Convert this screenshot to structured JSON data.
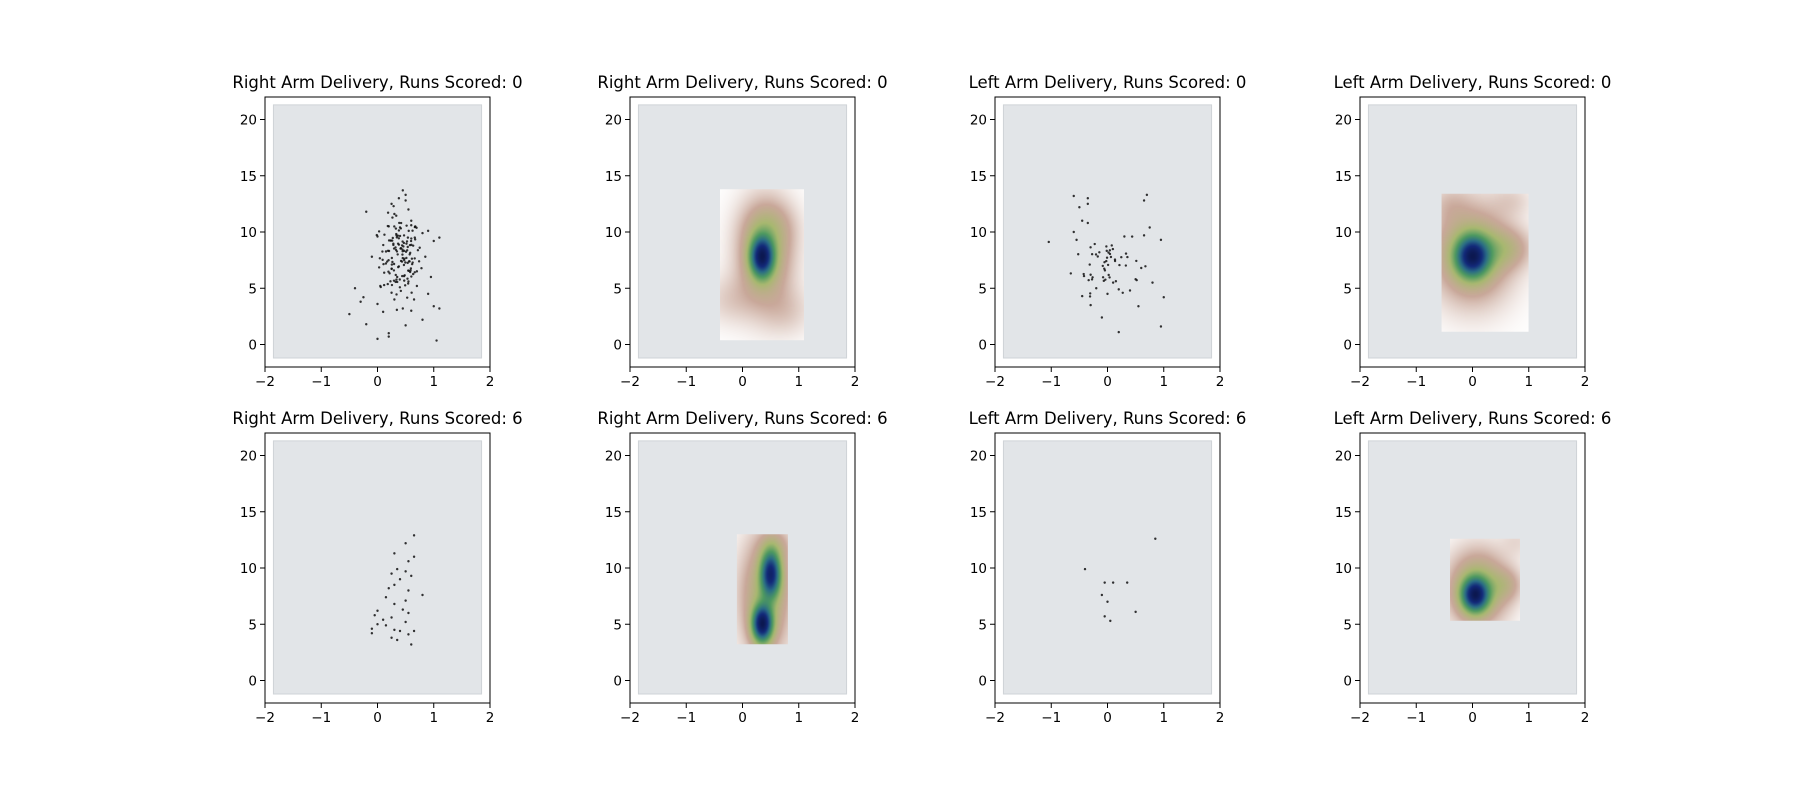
{
  "palette": {
    "pitch_fill": "#e2e5e8",
    "pitch_edge": "#cfd3d7",
    "point_color": "#111111",
    "density_colormap": [
      "#ffffff",
      "#c9a89a",
      "#a8b870",
      "#4f9a60",
      "#2a6c86",
      "#132a7a",
      "#0c1850"
    ]
  },
  "chart_data": [
    {
      "type": "scatter",
      "title": "Right Arm Delivery, Runs Scored: 0",
      "xlim": [
        -2,
        2
      ],
      "ylim": [
        -2,
        22
      ],
      "xticks": [
        "−2",
        "−1",
        "0",
        "1",
        "2"
      ],
      "yticks": [
        "0",
        "5",
        "10",
        "15",
        "20"
      ],
      "pitch": {
        "x": [
          -1.85,
          1.85
        ],
        "y": [
          -1.2,
          21.3
        ]
      },
      "cluster": {
        "cx": 0.4,
        "cy": 7.8,
        "sx": 0.18,
        "sy": 1.8,
        "n": 140
      },
      "points": [
        [
          -0.2,
          11.8
        ],
        [
          -0.4,
          5.0
        ],
        [
          -0.5,
          2.7
        ],
        [
          -0.3,
          3.8
        ],
        [
          -0.25,
          4.2
        ],
        [
          -0.2,
          1.8
        ],
        [
          0.0,
          0.5
        ],
        [
          0.2,
          1.0
        ],
        [
          0.2,
          0.7
        ],
        [
          0.1,
          2.9
        ],
        [
          0.05,
          5.2
        ],
        [
          0.0,
          3.6
        ],
        [
          0.3,
          4.0
        ],
        [
          0.5,
          1.7
        ],
        [
          0.6,
          3.0
        ],
        [
          0.8,
          2.2
        ],
        [
          1.0,
          3.4
        ],
        [
          1.1,
          3.2
        ],
        [
          1.05,
          0.35
        ],
        [
          0.9,
          4.5
        ],
        [
          0.95,
          6.0
        ],
        [
          0.85,
          7.8
        ],
        [
          1.0,
          9.2
        ],
        [
          1.1,
          9.5
        ],
        [
          0.9,
          10.1
        ],
        [
          0.75,
          8.6
        ],
        [
          0.7,
          5.2
        ],
        [
          0.45,
          13.7
        ],
        [
          0.38,
          13.0
        ],
        [
          0.5,
          12.8
        ],
        [
          0.55,
          12.0
        ],
        [
          0.3,
          11.6
        ],
        [
          0.6,
          11.0
        ],
        [
          0.2,
          10.5
        ],
        [
          0.15,
          7.2
        ],
        [
          0.35,
          6.0
        ],
        [
          0.55,
          5.6
        ],
        [
          0.25,
          4.6
        ],
        [
          0.45,
          3.2
        ],
        [
          0.65,
          4.0
        ],
        [
          0.4,
          10.4
        ],
        [
          0.6,
          10.6
        ],
        [
          0.25,
          12.5
        ],
        [
          0.5,
          13.3
        ],
        [
          0.8,
          9.9
        ],
        [
          -0.1,
          7.8
        ],
        [
          0.0,
          9.6
        ],
        [
          0.7,
          6.5
        ]
      ]
    },
    {
      "type": "heatmap",
      "title": "Right Arm Delivery, Runs Scored: 0",
      "xlim": [
        -2,
        2
      ],
      "ylim": [
        -2,
        22
      ],
      "xticks": [
        "−2",
        "−1",
        "0",
        "1",
        "2"
      ],
      "yticks": [
        "0",
        "5",
        "10",
        "15",
        "20"
      ],
      "pitch": {
        "x": [
          -1.85,
          1.85
        ],
        "y": [
          -1.2,
          21.3
        ]
      },
      "extent": {
        "x": [
          -0.4,
          1.1
        ],
        "y": [
          0.4,
          13.8
        ]
      },
      "kernels": [
        {
          "cx": 0.35,
          "cy": 7.8,
          "sx": 0.14,
          "sy": 1.2,
          "w": 1.0
        },
        {
          "cx": 0.4,
          "cy": 8.0,
          "sx": 0.32,
          "sy": 3.0,
          "w": 0.35
        },
        {
          "cx": 0.5,
          "cy": 10.5,
          "sx": 0.3,
          "sy": 1.5,
          "w": 0.12
        },
        {
          "cx": -0.2,
          "cy": 4.0,
          "sx": 0.35,
          "sy": 1.5,
          "w": 0.08
        },
        {
          "cx": 0.8,
          "cy": 3.0,
          "sx": 0.3,
          "sy": 1.5,
          "w": 0.08
        }
      ]
    },
    {
      "type": "scatter",
      "title": "Left Arm Delivery, Runs Scored: 0",
      "xlim": [
        -2,
        2
      ],
      "ylim": [
        -2,
        22
      ],
      "xticks": [
        "−2",
        "−1",
        "0",
        "1",
        "2"
      ],
      "yticks": [
        "0",
        "5",
        "10",
        "15",
        "20"
      ],
      "pitch": {
        "x": [
          -1.85,
          1.85
        ],
        "y": [
          -1.2,
          21.3
        ]
      },
      "cluster": {
        "cx": 0.0,
        "cy": 7.5,
        "sx": 0.3,
        "sy": 1.4,
        "n": 50
      },
      "points": [
        [
          -0.6,
          13.2
        ],
        [
          -0.35,
          13.0
        ],
        [
          -0.35,
          12.5
        ],
        [
          -0.5,
          12.2
        ],
        [
          0.7,
          13.3
        ],
        [
          0.65,
          12.8
        ],
        [
          -0.45,
          11.0
        ],
        [
          -0.35,
          10.8
        ],
        [
          -0.6,
          10.0
        ],
        [
          0.75,
          10.4
        ],
        [
          0.65,
          9.7
        ],
        [
          0.95,
          9.3
        ],
        [
          -0.55,
          9.3
        ],
        [
          0.3,
          9.6
        ],
        [
          -0.45,
          4.3
        ],
        [
          -0.3,
          3.5
        ],
        [
          -0.1,
          2.4
        ],
        [
          0.2,
          1.1
        ],
        [
          0.55,
          3.4
        ],
        [
          1.0,
          4.2
        ],
        [
          0.95,
          1.6
        ],
        [
          0.2,
          4.9
        ],
        [
          0.8,
          5.5
        ],
        [
          0.6,
          6.8
        ],
        [
          -0.3,
          6.2
        ],
        [
          0.1,
          5.5
        ],
        [
          0.4,
          4.8
        ],
        [
          -0.2,
          5.0
        ],
        [
          0.5,
          5.8
        ],
        [
          0.0,
          4.5
        ]
      ]
    },
    {
      "type": "heatmap",
      "title": "Left Arm Delivery, Runs Scored: 0",
      "xlim": [
        -2,
        2
      ],
      "ylim": [
        -2,
        22
      ],
      "xticks": [
        "−2",
        "−1",
        "0",
        "1",
        "2"
      ],
      "yticks": [
        "0",
        "5",
        "10",
        "15",
        "20"
      ],
      "pitch": {
        "x": [
          -1.85,
          1.85
        ],
        "y": [
          -1.2,
          21.3
        ]
      },
      "extent": {
        "x": [
          -0.55,
          1.0
        ],
        "y": [
          1.1,
          13.4
        ]
      },
      "kernels": [
        {
          "cx": 0.0,
          "cy": 7.8,
          "sx": 0.2,
          "sy": 1.2,
          "w": 1.0
        },
        {
          "cx": 0.0,
          "cy": 8.0,
          "sx": 0.45,
          "sy": 2.8,
          "w": 0.4
        },
        {
          "cx": 0.6,
          "cy": 8.5,
          "sx": 0.3,
          "sy": 1.2,
          "w": 0.2
        },
        {
          "cx": -0.4,
          "cy": 12.5,
          "sx": 0.25,
          "sy": 1.2,
          "w": 0.08
        },
        {
          "cx": 0.7,
          "cy": 12.8,
          "sx": 0.25,
          "sy": 1.0,
          "w": 0.07
        }
      ]
    },
    {
      "type": "scatter",
      "title": "Right Arm Delivery, Runs Scored: 6",
      "xlim": [
        -2,
        2
      ],
      "ylim": [
        -2,
        22
      ],
      "xticks": [
        "−2",
        "−1",
        "0",
        "1",
        "2"
      ],
      "yticks": [
        "0",
        "5",
        "10",
        "15",
        "20"
      ],
      "pitch": {
        "x": [
          -1.85,
          1.85
        ],
        "y": [
          -1.2,
          21.3
        ]
      },
      "points": [
        [
          0.65,
          12.9
        ],
        [
          0.5,
          12.2
        ],
        [
          0.3,
          11.3
        ],
        [
          0.65,
          11.0
        ],
        [
          0.55,
          10.6
        ],
        [
          0.5,
          9.7
        ],
        [
          0.35,
          9.9
        ],
        [
          0.25,
          9.5
        ],
        [
          0.6,
          9.3
        ],
        [
          0.4,
          9.0
        ],
        [
          0.3,
          8.5
        ],
        [
          0.2,
          8.2
        ],
        [
          0.55,
          8.0
        ],
        [
          0.8,
          7.6
        ],
        [
          0.15,
          7.4
        ],
        [
          0.5,
          7.1
        ],
        [
          0.3,
          6.8
        ],
        [
          0.45,
          6.3
        ],
        [
          0.55,
          6.0
        ],
        [
          0.0,
          6.2
        ],
        [
          -0.05,
          5.8
        ],
        [
          0.1,
          5.4
        ],
        [
          0.25,
          5.6
        ],
        [
          0.5,
          5.2
        ],
        [
          0.0,
          5.0
        ],
        [
          -0.1,
          4.6
        ],
        [
          0.15,
          4.9
        ],
        [
          0.3,
          4.5
        ],
        [
          0.4,
          4.4
        ],
        [
          0.55,
          4.1
        ],
        [
          0.65,
          4.4
        ],
        [
          0.25,
          3.8
        ],
        [
          0.35,
          3.6
        ],
        [
          0.6,
          3.2
        ],
        [
          -0.1,
          4.2
        ]
      ]
    },
    {
      "type": "heatmap",
      "title": "Right Arm Delivery, Runs Scored: 6",
      "xlim": [
        -2,
        2
      ],
      "ylim": [
        -2,
        22
      ],
      "xticks": [
        "−2",
        "−1",
        "0",
        "1",
        "2"
      ],
      "yticks": [
        "0",
        "5",
        "10",
        "15",
        "20"
      ],
      "pitch": {
        "x": [
          -1.85,
          1.85
        ],
        "y": [
          -1.2,
          21.3
        ]
      },
      "extent": {
        "x": [
          -0.1,
          0.8
        ],
        "y": [
          3.2,
          13.0
        ]
      },
      "kernels": [
        {
          "cx": 0.35,
          "cy": 5.0,
          "sx": 0.12,
          "sy": 1.1,
          "w": 1.0
        },
        {
          "cx": 0.5,
          "cy": 9.5,
          "sx": 0.12,
          "sy": 1.4,
          "w": 0.85
        },
        {
          "cx": 0.4,
          "cy": 7.5,
          "sx": 0.3,
          "sy": 3.5,
          "w": 0.3
        },
        {
          "cx": 0.6,
          "cy": 12.0,
          "sx": 0.2,
          "sy": 1.0,
          "w": 0.1
        }
      ]
    },
    {
      "type": "scatter",
      "title": "Left Arm Delivery, Runs Scored: 6",
      "xlim": [
        -2,
        2
      ],
      "ylim": [
        -2,
        22
      ],
      "xticks": [
        "−2",
        "−1",
        "0",
        "1",
        "2"
      ],
      "yticks": [
        "0",
        "5",
        "10",
        "15",
        "20"
      ],
      "pitch": {
        "x": [
          -1.85,
          1.85
        ],
        "y": [
          -1.2,
          21.3
        ]
      },
      "points": [
        [
          0.85,
          12.6
        ],
        [
          -0.4,
          9.9
        ],
        [
          -0.05,
          8.7
        ],
        [
          0.1,
          8.7
        ],
        [
          0.35,
          8.7
        ],
        [
          -0.1,
          7.6
        ],
        [
          0.0,
          7.0
        ],
        [
          0.5,
          6.1
        ],
        [
          -0.05,
          5.7
        ],
        [
          0.05,
          5.3
        ]
      ]
    },
    {
      "type": "heatmap",
      "title": "Left Arm Delivery, Runs Scored: 6",
      "xlim": [
        -2,
        2
      ],
      "ylim": [
        -2,
        22
      ],
      "xticks": [
        "−2",
        "−1",
        "0",
        "1",
        "2"
      ],
      "yticks": [
        "0",
        "5",
        "10",
        "15",
        "20"
      ],
      "pitch": {
        "x": [
          -1.85,
          1.85
        ],
        "y": [
          -1.2,
          21.3
        ]
      },
      "extent": {
        "x": [
          -0.4,
          0.85
        ],
        "y": [
          5.3,
          12.6
        ]
      },
      "kernels": [
        {
          "cx": 0.05,
          "cy": 7.6,
          "sx": 0.16,
          "sy": 1.0,
          "w": 1.0
        },
        {
          "cx": 0.1,
          "cy": 8.2,
          "sx": 0.35,
          "sy": 2.2,
          "w": 0.4
        },
        {
          "cx": 0.6,
          "cy": 8.5,
          "sx": 0.2,
          "sy": 1.0,
          "w": 0.15
        },
        {
          "cx": 0.8,
          "cy": 12.4,
          "sx": 0.2,
          "sy": 1.0,
          "w": 0.06
        }
      ]
    }
  ]
}
